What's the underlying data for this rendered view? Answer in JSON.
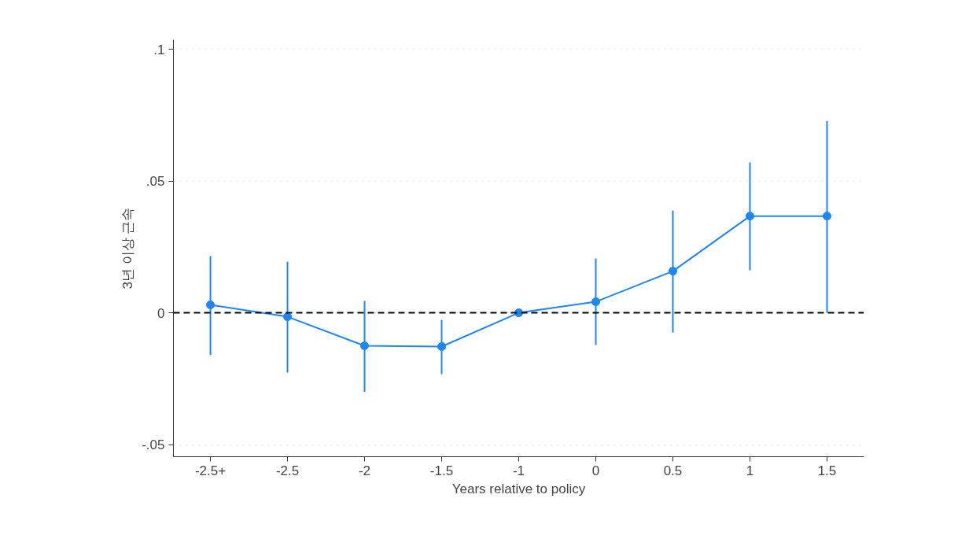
{
  "chart_data": {
    "type": "line",
    "xlabel": "Years relative to policy",
    "ylabel": "3년 이상 근속",
    "categories": [
      "-2.5+",
      "-2.5",
      "-2",
      "-1.5",
      "-1",
      "0",
      "0.5",
      "1",
      "1.5"
    ],
    "series": [
      {
        "color": "#1f86f0",
        "values": [
          0.003,
          -0.0015,
          -0.0125,
          -0.0128,
          0,
          0.0042,
          0.0158,
          0.0367,
          0.0367
        ],
        "errors": [
          [
            -0.016,
            0.0215
          ],
          [
            -0.0227,
            0.0194
          ],
          [
            -0.03,
            0.0045
          ],
          [
            -0.0233,
            -0.0027
          ],
          null,
          [
            -0.0122,
            0.0206
          ],
          [
            -0.0075,
            0.0388
          ],
          [
            0.0161,
            0.057
          ],
          [
            0.0,
            0.0728
          ]
        ]
      }
    ],
    "ylim": [
      -0.0546,
      0.1036
    ],
    "yticks": [
      {
        "value": -0.05,
        "label": "-.05"
      },
      0,
      {
        "value": 0.05,
        "label": ".05"
      },
      {
        "value": 0.1,
        "label": ".1"
      }
    ],
    "grid": "y",
    "marker": "circle",
    "line_style": "solid",
    "ref_lines": [
      {
        "axis": "y",
        "value": 0,
        "color": "#000000",
        "line_style": "dashed"
      }
    ]
  }
}
